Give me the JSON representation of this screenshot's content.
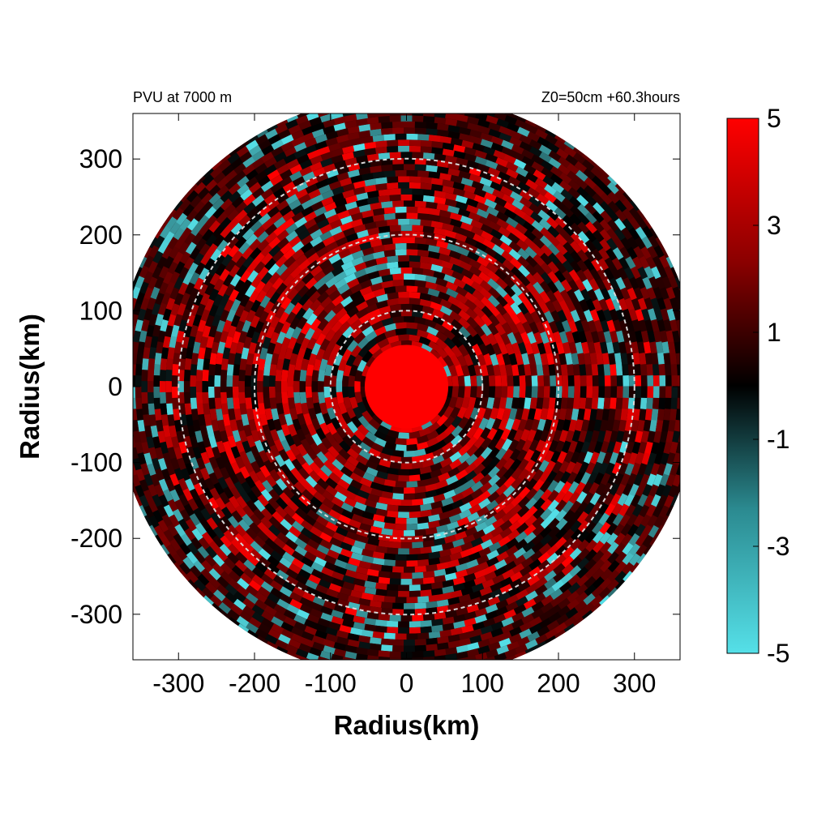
{
  "chart_data": {
    "type": "heatmap",
    "title_left": "PVU at  7000 m",
    "title_right": "Z0=50cm  +60.3hours",
    "xlabel": "Radius(km)",
    "ylabel": "Radius(km)",
    "xlim": [
      -360,
      360
    ],
    "ylim": [
      -360,
      360
    ],
    "xticks": [
      -300,
      -200,
      -100,
      0,
      100,
      200,
      300
    ],
    "yticks": [
      300,
      200,
      100,
      0,
      -100,
      -200,
      -300
    ],
    "xtick_labels": [
      "-300",
      "-200",
      "-100",
      "0",
      "100",
      "200",
      "300"
    ],
    "ytick_labels": [
      "300",
      "200",
      "100",
      "0",
      "-100",
      "-200",
      "-300"
    ],
    "reference_circles_km": [
      100,
      200,
      300
    ],
    "domain_radius_km": 385,
    "core": {
      "radius_km": 55,
      "value": 5
    },
    "colorbar": {
      "min": -5,
      "max": 5,
      "ticks": [
        "5",
        "3",
        "1",
        "-1",
        "-3",
        "-5"
      ],
      "tick_values": [
        5,
        3,
        1,
        -1,
        -3,
        -5
      ],
      "colors": {
        "low": "#55e0e8",
        "mid": "#000000",
        "high": "#ff0000"
      }
    },
    "grid": false
  }
}
